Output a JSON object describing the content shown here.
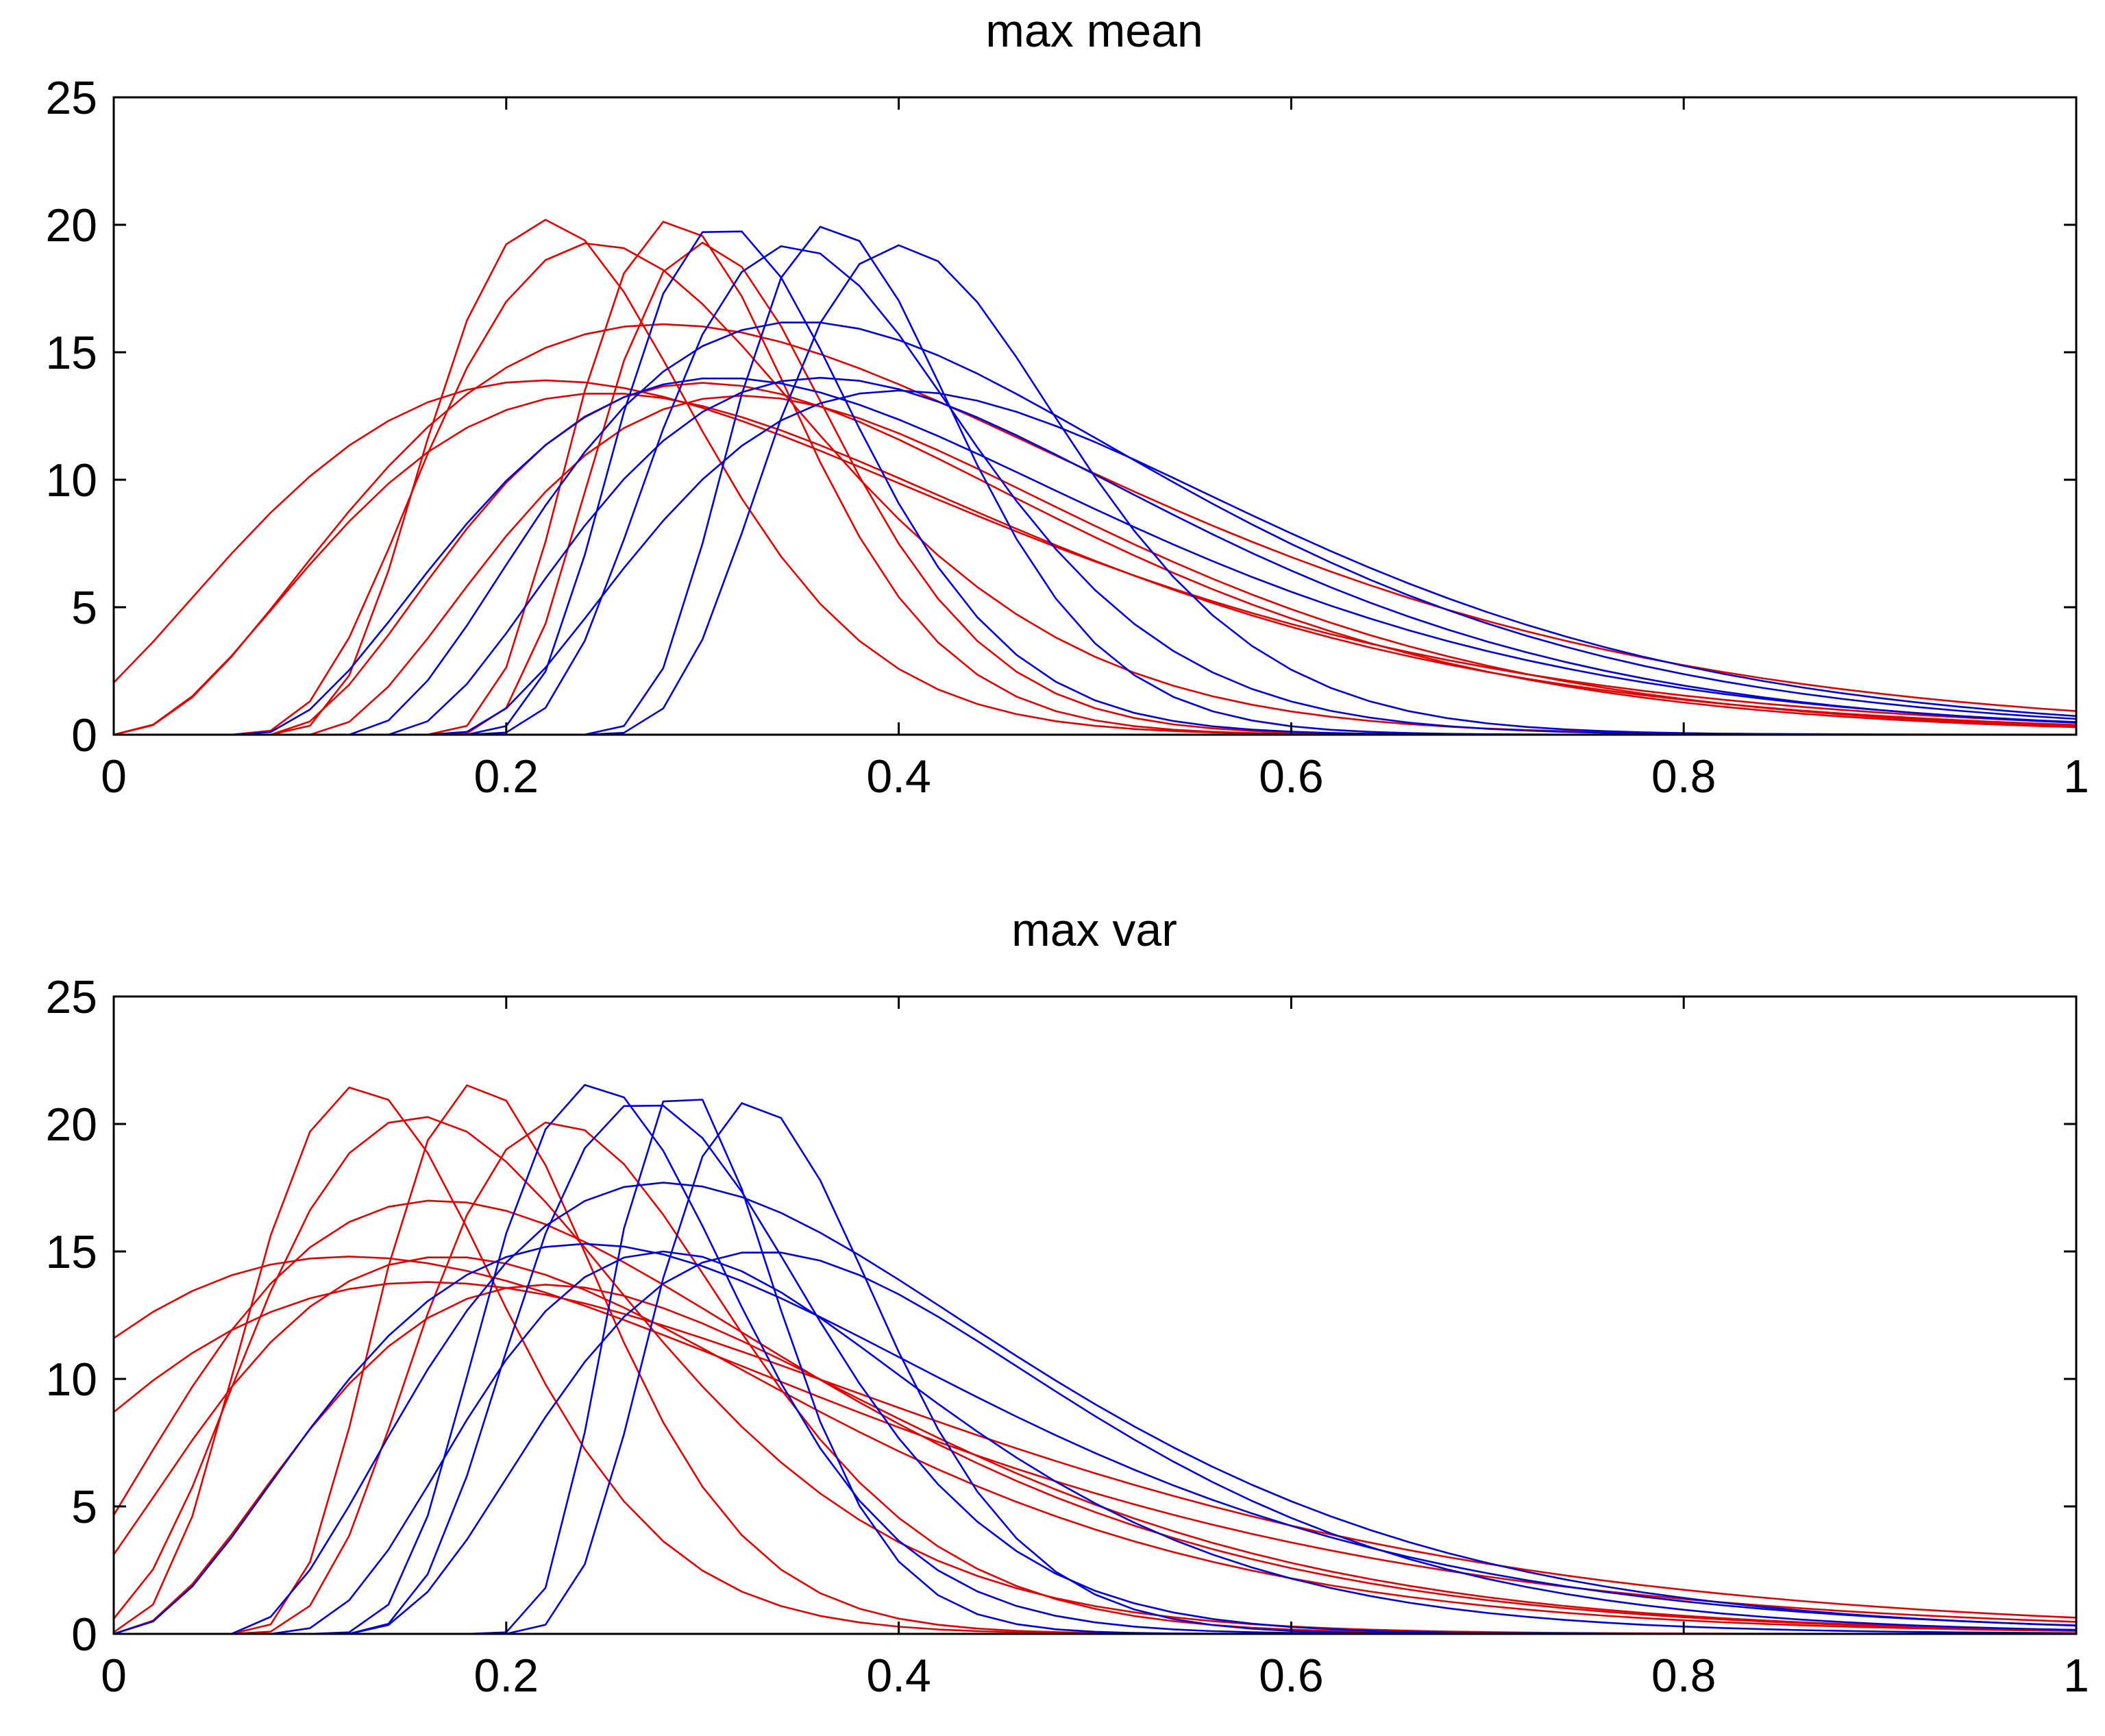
{
  "chart_data": [
    {
      "type": "line",
      "title": "max mean",
      "xlabel": "",
      "ylabel": "",
      "xlim": [
        0,
        1
      ],
      "ylim": [
        0,
        25
      ],
      "xticks": [
        0,
        0.2,
        0.4,
        0.6,
        0.8,
        1
      ],
      "xtick_labels": [
        "0",
        "0.2",
        "0.4",
        "0.6",
        "0.8",
        "1"
      ],
      "yticks": [
        0,
        5,
        10,
        15,
        20,
        25
      ],
      "ytick_labels": [
        "0",
        "5",
        "10",
        "15",
        "20",
        "25"
      ],
      "grid": false,
      "colors": {
        "red": "#e00000",
        "blue": "#0000d8"
      },
      "series_params": [
        {
          "name": "red-1",
          "color": "red",
          "peak_x": 0.22,
          "peak_y": 20.2,
          "onset": 0.07
        },
        {
          "name": "red-2",
          "color": "red",
          "peak_x": 0.245,
          "peak_y": 19.3,
          "onset": 0.06
        },
        {
          "name": "red-3",
          "color": "red",
          "peak_x": 0.285,
          "peak_y": 20.2,
          "onset": 0.15
        },
        {
          "name": "red-4",
          "color": "red",
          "peak_x": 0.3,
          "peak_y": 19.3,
          "onset": 0.16
        },
        {
          "name": "red-5",
          "color": "red",
          "peak_x": 0.28,
          "peak_y": 16.1,
          "onset": 0.0
        },
        {
          "name": "red-6",
          "color": "red",
          "peak_x": 0.22,
          "peak_y": 13.9,
          "onset": -0.05
        },
        {
          "name": "red-7",
          "color": "red",
          "peak_x": 0.25,
          "peak_y": 13.4,
          "onset": 0.0
        },
        {
          "name": "red-8",
          "color": "red",
          "peak_x": 0.3,
          "peak_y": 13.8,
          "onset": 0.08
        },
        {
          "name": "red-9",
          "color": "red",
          "peak_x": 0.32,
          "peak_y": 13.3,
          "onset": 0.1
        },
        {
          "name": "blue-1",
          "color": "blue",
          "peak_x": 0.31,
          "peak_y": 20.0,
          "onset": 0.17
        },
        {
          "name": "blue-2",
          "color": "blue",
          "peak_x": 0.345,
          "peak_y": 19.2,
          "onset": 0.18
        },
        {
          "name": "blue-3",
          "color": "blue",
          "peak_x": 0.365,
          "peak_y": 20.0,
          "onset": 0.23
        },
        {
          "name": "blue-4",
          "color": "blue",
          "peak_x": 0.4,
          "peak_y": 19.2,
          "onset": 0.24
        },
        {
          "name": "blue-5",
          "color": "blue",
          "peak_x": 0.35,
          "peak_y": 16.2,
          "onset": 0.12
        },
        {
          "name": "blue-6",
          "color": "blue",
          "peak_x": 0.31,
          "peak_y": 14.0,
          "onset": 0.07
        },
        {
          "name": "blue-7",
          "color": "blue",
          "peak_x": 0.36,
          "peak_y": 14.0,
          "onset": 0.14
        },
        {
          "name": "blue-8",
          "color": "blue",
          "peak_x": 0.4,
          "peak_y": 13.5,
          "onset": 0.17
        }
      ]
    },
    {
      "type": "line",
      "title": "max var",
      "xlabel": "",
      "ylabel": "",
      "xlim": [
        0,
        1
      ],
      "ylim": [
        0,
        25
      ],
      "xticks": [
        0,
        0.2,
        0.4,
        0.6,
        0.8,
        1
      ],
      "xtick_labels": [
        "0",
        "0.2",
        "0.4",
        "0.6",
        "0.8",
        "1"
      ],
      "yticks": [
        0,
        5,
        10,
        15,
        20,
        25
      ],
      "ytick_labels": [
        "0",
        "5",
        "10",
        "15",
        "20",
        "25"
      ],
      "grid": false,
      "colors": {
        "red": "#e00000",
        "blue": "#0000d8"
      },
      "series_params": [
        {
          "name": "red-1",
          "color": "red",
          "peak_x": 0.125,
          "peak_y": 21.5,
          "onset": -0.02
        },
        {
          "name": "red-2",
          "color": "red",
          "peak_x": 0.155,
          "peak_y": 20.3,
          "onset": -0.03
        },
        {
          "name": "red-3",
          "color": "red",
          "peak_x": 0.185,
          "peak_y": 21.6,
          "onset": 0.05
        },
        {
          "name": "red-4",
          "color": "red",
          "peak_x": 0.225,
          "peak_y": 20.1,
          "onset": 0.06
        },
        {
          "name": "red-5",
          "color": "red",
          "peak_x": 0.165,
          "peak_y": 17.0,
          "onset": -0.06
        },
        {
          "name": "red-6",
          "color": "red",
          "peak_x": 0.12,
          "peak_y": 14.8,
          "onset": -0.18
        },
        {
          "name": "red-7",
          "color": "red",
          "peak_x": 0.16,
          "peak_y": 13.8,
          "onset": -0.15
        },
        {
          "name": "red-8",
          "color": "red",
          "peak_x": 0.17,
          "peak_y": 14.8,
          "onset": -0.05
        },
        {
          "name": "red-9",
          "color": "red",
          "peak_x": 0.22,
          "peak_y": 13.7,
          "onset": 0.0
        },
        {
          "name": "blue-1",
          "color": "blue",
          "peak_x": 0.245,
          "peak_y": 21.6,
          "onset": 0.1
        },
        {
          "name": "blue-2",
          "color": "blue",
          "peak_x": 0.27,
          "peak_y": 20.9,
          "onset": 0.11
        },
        {
          "name": "blue-3",
          "color": "blue",
          "peak_x": 0.29,
          "peak_y": 21.5,
          "onset": 0.18
        },
        {
          "name": "blue-4",
          "color": "blue",
          "peak_x": 0.325,
          "peak_y": 20.9,
          "onset": 0.19
        },
        {
          "name": "blue-5",
          "color": "blue",
          "peak_x": 0.28,
          "peak_y": 17.7,
          "onset": 0.06
        },
        {
          "name": "blue-6",
          "color": "blue",
          "peak_x": 0.24,
          "peak_y": 15.3,
          "onset": 0.0
        },
        {
          "name": "blue-7",
          "color": "blue",
          "peak_x": 0.28,
          "peak_y": 15.0,
          "onset": 0.08
        },
        {
          "name": "blue-8",
          "color": "blue",
          "peak_x": 0.33,
          "peak_y": 15.0,
          "onset": 0.12
        }
      ]
    }
  ]
}
